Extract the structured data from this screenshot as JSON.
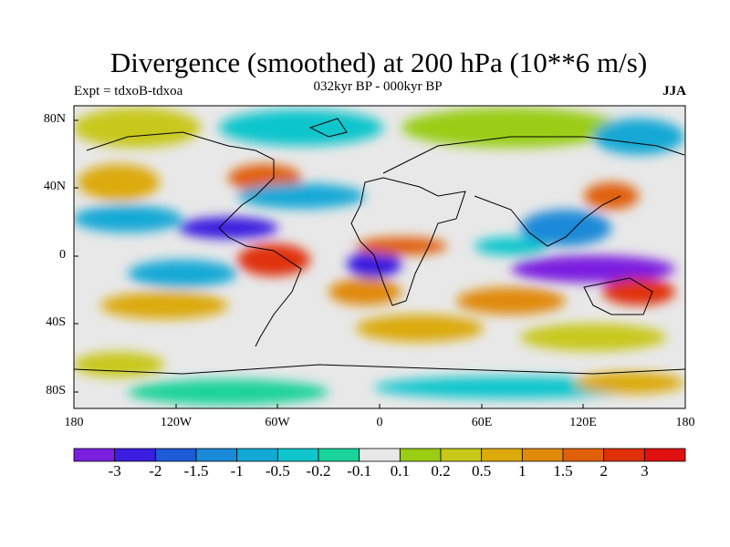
{
  "title": "Divergence (smoothed) at 200 hPa (10**6 m/s)",
  "subtitle": "032kyr BP - 000kyr BP",
  "experiment": "Expt = tdxoB-tdxoa",
  "season": "JJA",
  "lat_ticks": [
    "80N",
    "40N",
    "0",
    "40S",
    "80S"
  ],
  "lon_ticks": [
    "180",
    "120W",
    "60W",
    "0",
    "60E",
    "120E",
    "180"
  ],
  "colorbar": {
    "labels": [
      "-3",
      "-2",
      "-1.5",
      "-1",
      "-0.5",
      "-0.2",
      "-0.1",
      "0.1",
      "0.2",
      "0.5",
      "1",
      "1.5",
      "2",
      "3"
    ],
    "colors": [
      "#7a1fe0",
      "#3b1ee0",
      "#1e5bd6",
      "#1a8ad8",
      "#12a9d6",
      "#10c6cc",
      "#1ad39a",
      "#e8e8e8",
      "#9acd14",
      "#c8c81a",
      "#dcaa0a",
      "#e08a0a",
      "#e0600a",
      "#e0300a",
      "#e01010"
    ]
  }
}
